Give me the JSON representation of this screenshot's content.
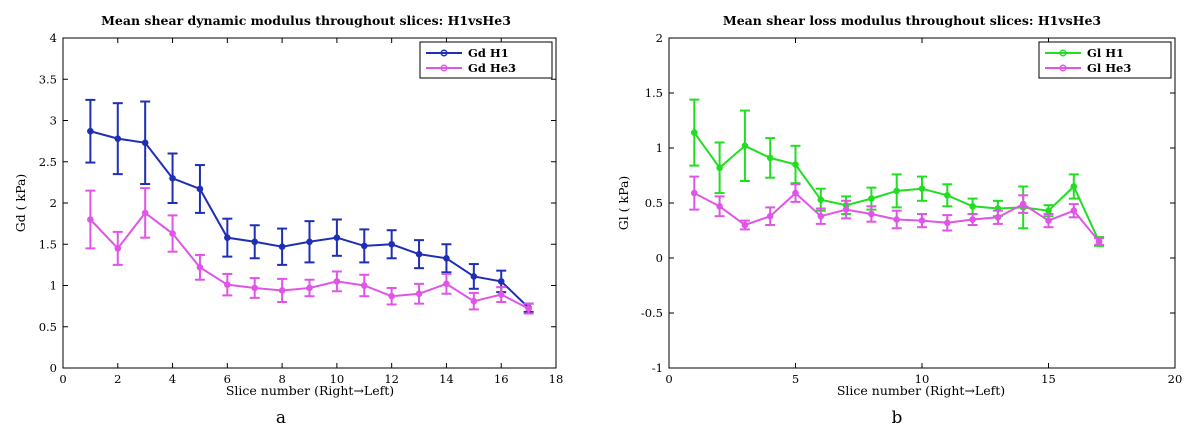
{
  "chart_data": [
    {
      "type": "line",
      "title": "Mean shear dynamic modulus throughout slices: H1vsHe3",
      "xlabel": "Slice number (Right→Left)",
      "ylabel": "Gd ( kPa)",
      "panel_label": "a",
      "xlim": [
        0,
        18
      ],
      "ylim": [
        0,
        4
      ],
      "xticks": [
        0,
        2,
        4,
        6,
        8,
        10,
        12,
        14,
        16,
        18
      ],
      "xtick_labels": [
        "0",
        "2",
        "4",
        "6",
        "8",
        "10",
        "12",
        "14",
        "16",
        "18"
      ],
      "yticks": [
        0,
        0.5,
        1,
        1.5,
        2,
        2.5,
        3,
        3.5,
        4
      ],
      "ytick_labels": [
        "0",
        "0.5",
        "1",
        "1.5",
        "2",
        "2.5",
        "3",
        "3.5",
        "4"
      ],
      "legend_position": "top-right",
      "x": [
        1,
        2,
        3,
        4,
        5,
        6,
        7,
        8,
        9,
        10,
        11,
        12,
        13,
        14,
        15,
        16,
        17
      ],
      "series": [
        {
          "name": "Gd H1",
          "color": "#1f2fb5",
          "values": [
            2.87,
            2.78,
            2.73,
            2.3,
            2.17,
            1.58,
            1.53,
            1.47,
            1.53,
            1.58,
            1.48,
            1.5,
            1.38,
            1.33,
            1.11,
            1.05,
            0.73
          ],
          "error": [
            0.38,
            0.43,
            0.5,
            0.3,
            0.29,
            0.23,
            0.2,
            0.22,
            0.25,
            0.22,
            0.2,
            0.17,
            0.17,
            0.17,
            0.15,
            0.13,
            0.05
          ]
        },
        {
          "name": "Gd He3",
          "color": "#e055e8",
          "values": [
            1.8,
            1.45,
            1.88,
            1.63,
            1.22,
            1.01,
            0.97,
            0.94,
            0.97,
            1.05,
            1.0,
            0.87,
            0.9,
            1.02,
            0.81,
            0.89,
            0.72
          ],
          "error": [
            0.35,
            0.2,
            0.3,
            0.22,
            0.15,
            0.13,
            0.12,
            0.14,
            0.1,
            0.12,
            0.13,
            0.1,
            0.12,
            0.12,
            0.1,
            0.09,
            0.06
          ]
        }
      ]
    },
    {
      "type": "line",
      "title": "Mean shear loss modulus throughout slices: H1vsHe3",
      "xlabel": "Slice number (Right→Left)",
      "ylabel": "Gl ( kPa)",
      "panel_label": "b",
      "xlim": [
        0,
        20
      ],
      "ylim": [
        -1,
        2
      ],
      "xticks": [
        0,
        5,
        10,
        15,
        20
      ],
      "xtick_labels": [
        "0",
        "5",
        "10",
        "15",
        "20"
      ],
      "yticks": [
        -1,
        -0.5,
        0,
        0.5,
        1,
        1.5,
        2
      ],
      "ytick_labels": [
        "-1",
        "-0.5",
        "0",
        "0.5",
        "1",
        "1.5",
        "2"
      ],
      "legend_position": "top-right",
      "x": [
        1,
        2,
        3,
        4,
        5,
        6,
        7,
        8,
        9,
        10,
        11,
        12,
        13,
        14,
        15,
        16,
        17
      ],
      "series": [
        {
          "name": "Gl H1",
          "color": "#22dd22",
          "values": [
            1.14,
            0.82,
            1.02,
            0.91,
            0.85,
            0.53,
            0.48,
            0.54,
            0.61,
            0.63,
            0.57,
            0.47,
            0.45,
            0.46,
            0.43,
            0.65,
            0.15
          ],
          "error": [
            0.3,
            0.23,
            0.32,
            0.18,
            0.17,
            0.1,
            0.08,
            0.1,
            0.15,
            0.11,
            0.1,
            0.07,
            0.07,
            0.19,
            0.05,
            0.11,
            0.04
          ]
        },
        {
          "name": "Gl He3",
          "color": "#e055e8",
          "values": [
            0.59,
            0.47,
            0.3,
            0.38,
            0.59,
            0.38,
            0.44,
            0.4,
            0.35,
            0.34,
            0.32,
            0.35,
            0.37,
            0.49,
            0.34,
            0.43,
            0.15
          ],
          "error": [
            0.15,
            0.09,
            0.04,
            0.08,
            0.08,
            0.07,
            0.08,
            0.07,
            0.08,
            0.06,
            0.07,
            0.05,
            0.06,
            0.08,
            0.06,
            0.06,
            0.03
          ]
        }
      ]
    }
  ]
}
